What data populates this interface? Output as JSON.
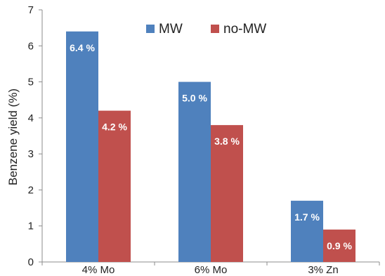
{
  "chart_data": {
    "type": "bar",
    "title": "",
    "xlabel": "",
    "ylabel": "Benzene yield (%)",
    "categories": [
      "4% Mo",
      "6% Mo",
      "3% Zn"
    ],
    "ylim": [
      0,
      7
    ],
    "yticks": [
      0,
      1,
      2,
      3,
      4,
      5,
      6,
      7
    ],
    "grid": false,
    "legend": {
      "position": "top-center",
      "orientation": "horizontal"
    },
    "series": [
      {
        "name": "MW",
        "color": "#4F81BD",
        "values": [
          6.4,
          5.0,
          1.7
        ],
        "data_labels": [
          "6.4 %",
          "5.0 %",
          "1.7 %"
        ]
      },
      {
        "name": "no-MW",
        "color": "#C0504D",
        "values": [
          4.2,
          3.8,
          0.9
        ],
        "data_labels": [
          "4.2 %",
          "3.8 %",
          "0.9 %"
        ]
      }
    ]
  }
}
